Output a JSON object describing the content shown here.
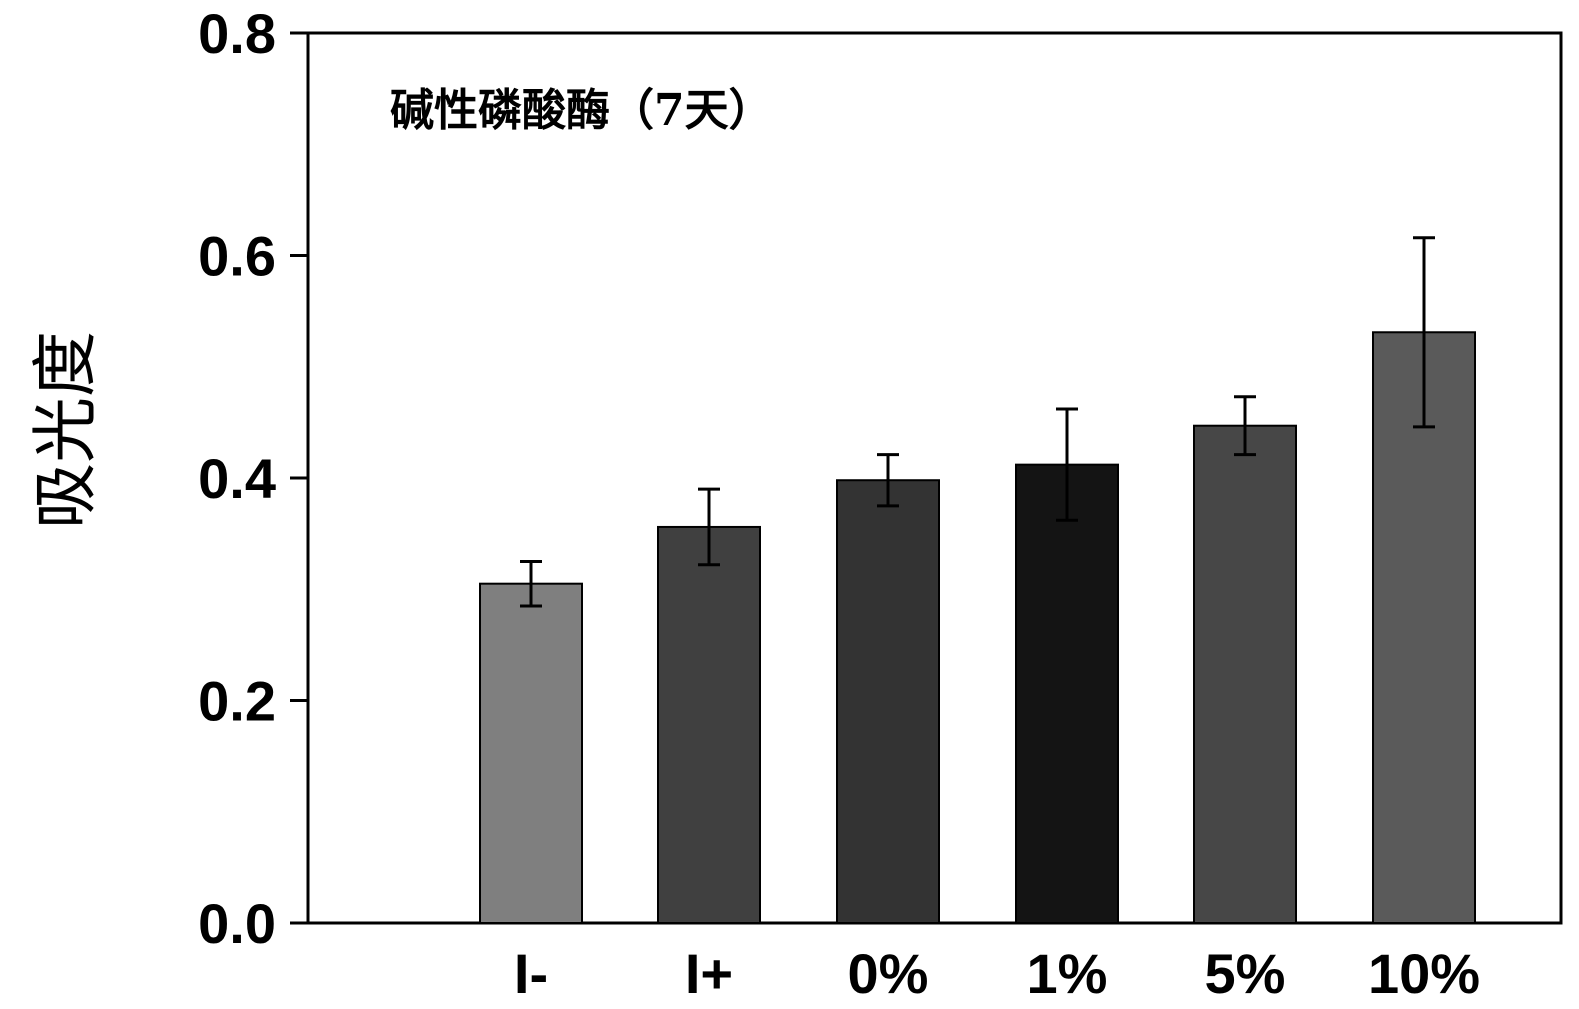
{
  "chart_data": {
    "type": "bar",
    "title": "碱性磷酸酶（7天）",
    "xlabel": "",
    "ylabel": "吸光度",
    "categories": [
      "I-",
      "I+",
      "0%",
      "1%",
      "5%",
      "10%"
    ],
    "series": [
      {
        "values": [
          0.305,
          0.356,
          0.398,
          0.412,
          0.447,
          0.531
        ],
        "errors": [
          0.02,
          0.034,
          0.023,
          0.05,
          0.026,
          0.085
        ]
      }
    ],
    "bar_colors": [
      "#7f7f7f",
      "#404040",
      "#333333",
      "#141414",
      "#474747",
      "#5a5a5a"
    ],
    "ylim": [
      0,
      0.8
    ],
    "yticks": [
      "0.0",
      "0.2",
      "0.4",
      "0.6",
      "0.8"
    ],
    "grid": false,
    "legend": "none",
    "title_placement": "inside-top-left"
  }
}
